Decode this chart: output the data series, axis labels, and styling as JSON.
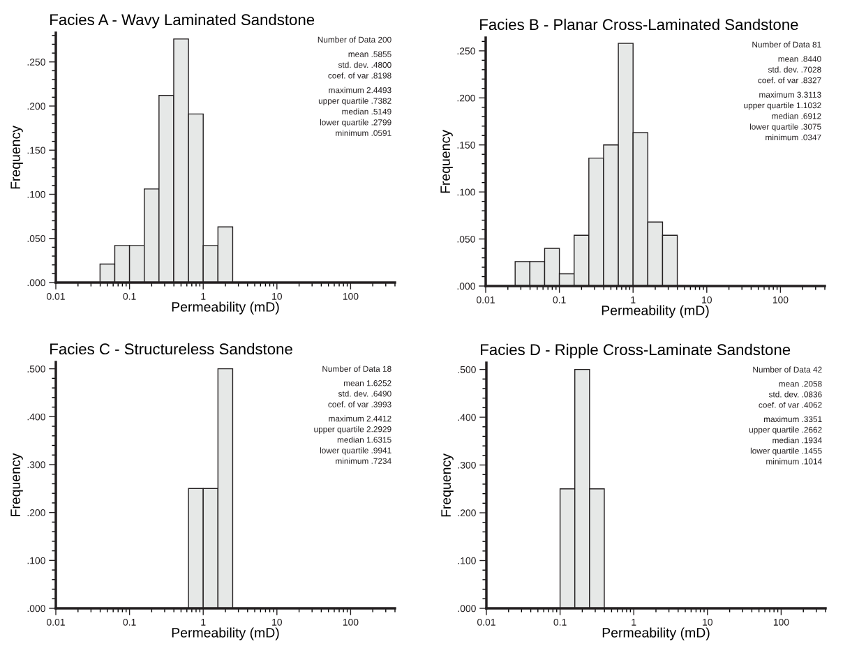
{
  "chart_data": [
    {
      "type": "histogram",
      "title": "Facies A - Wavy Laminated Sandstone",
      "xlabel": "Permeability (mD)",
      "ylabel": "Frequency",
      "log": "x",
      "color": "#e6e8e7",
      "bins": [
        0.0398,
        0.0631,
        0.1,
        0.1585,
        0.2512,
        0.3981,
        0.631,
        1,
        1.585,
        2.512
      ],
      "values": [
        0.021,
        0.042,
        0.042,
        0.106,
        0.212,
        0.276,
        0.191,
        0.042,
        0.063
      ],
      "xlim": [
        0.01,
        400
      ],
      "xticks": [
        0.01,
        0.1,
        1,
        10,
        100
      ],
      "ylim": [
        0,
        0.283
      ],
      "yticks": [
        {
          "value": 0,
          "label": ".000"
        },
        {
          "value": 0.05,
          "label": ".050"
        },
        {
          "value": 0.1,
          "label": ".100"
        },
        {
          "value": 0.15,
          "label": ".150"
        },
        {
          "value": 0.2,
          "label": ".200"
        },
        {
          "value": 0.25,
          "label": ".250"
        }
      ],
      "annotations": [
        "Number of Data 200",
        "mean .5855",
        "std. dev. .4800",
        "coef. of var .8198",
        "maximum 2.4493",
        "upper quartile .7382",
        "median .5149",
        "lower quartile .2799",
        "minimum .0591"
      ]
    },
    {
      "type": "histogram",
      "title": "Facies B - Planar Cross-Laminated Sandstone",
      "xlabel": "Permeability (mD)",
      "ylabel": "Frequency",
      "log": "x",
      "color": "#e6e8e7",
      "bins": [
        0.0251,
        0.0398,
        0.0631,
        0.1,
        0.1585,
        0.2512,
        0.3981,
        0.631,
        1,
        1.585,
        2.512,
        3.981
      ],
      "values": [
        0.026,
        0.026,
        0.04,
        0.013,
        0.054,
        0.136,
        0.15,
        0.258,
        0.163,
        0.068,
        0.054
      ],
      "xlim": [
        0.01,
        400
      ],
      "xticks": [
        0.01,
        0.1,
        1,
        10,
        100
      ],
      "ylim": [
        0,
        0.264
      ],
      "yticks": [
        {
          "value": 0,
          "label": ".000"
        },
        {
          "value": 0.05,
          "label": ".050"
        },
        {
          "value": 0.1,
          "label": ".100"
        },
        {
          "value": 0.15,
          "label": ".150"
        },
        {
          "value": 0.2,
          "label": ".200"
        },
        {
          "value": 0.25,
          "label": ".250"
        }
      ],
      "annotations": [
        "Number of Data 81",
        "mean .8440",
        "std. dev. .7028",
        "coef. of var .8327",
        "maximum 3.3113",
        "upper quartile 1.1032",
        "median .6912",
        "lower quartile .3075",
        "minimum .0347"
      ]
    },
    {
      "type": "histogram",
      "title": "Facies C - Structureless Sandstone",
      "xlabel": "Permeability (mD)",
      "ylabel": "Frequency",
      "log": "x",
      "color": "#e6e8e7",
      "bins": [
        0.631,
        1,
        1.585,
        2.512
      ],
      "values": [
        0.25,
        0.25,
        0.5
      ],
      "xlim": [
        0.01,
        400
      ],
      "xticks": [
        0.01,
        0.1,
        1,
        10,
        100
      ],
      "ylim": [
        0,
        0.514
      ],
      "yticks": [
        {
          "value": 0,
          "label": ".000"
        },
        {
          "value": 0.1,
          "label": ".100"
        },
        {
          "value": 0.2,
          "label": ".200"
        },
        {
          "value": 0.3,
          "label": ".300"
        },
        {
          "value": 0.4,
          "label": ".400"
        },
        {
          "value": 0.5,
          "label": ".500"
        }
      ],
      "annotations": [
        "Number of Data 18",
        "mean 1.6252",
        "std. dev. .6490",
        "coef. of var .3993",
        "maximum 2.4412",
        "upper quartile 2.2929",
        "median 1.6315",
        "lower quartile .9941",
        "minimum .7234"
      ]
    },
    {
      "type": "histogram",
      "title": "Facies D - Ripple Cross-Laminate Sandstone",
      "xlabel": "Permeability (mD)",
      "ylabel": "Frequency",
      "log": "x",
      "color": "#e6e8e7",
      "bins": [
        0.1,
        0.1585,
        0.2512,
        0.3981
      ],
      "values": [
        0.25,
        0.5,
        0.25
      ],
      "xlim": [
        0.01,
        400
      ],
      "xticks": [
        0.01,
        0.1,
        1,
        10,
        100
      ],
      "ylim": [
        0,
        0.514
      ],
      "yticks": [
        {
          "value": 0,
          "label": ".000"
        },
        {
          "value": 0.1,
          "label": ".100"
        },
        {
          "value": 0.2,
          "label": ".200"
        },
        {
          "value": 0.3,
          "label": ".300"
        },
        {
          "value": 0.4,
          "label": ".400"
        },
        {
          "value": 0.5,
          "label": ".500"
        }
      ],
      "annotations": [
        "Number of Data 42",
        "mean .2058",
        "std. dev. .0836",
        "coef. of var .4062",
        "maximum .3351",
        "upper quartile .2662",
        "median .1934",
        "lower quartile .1455",
        "minimum .1014"
      ]
    }
  ]
}
